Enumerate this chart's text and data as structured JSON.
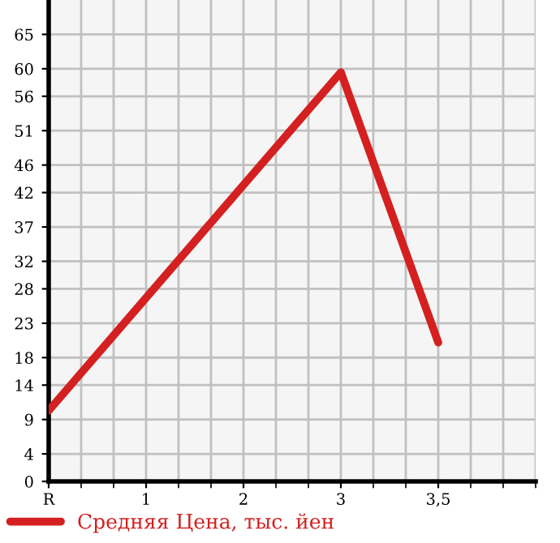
{
  "chart_data": {
    "type": "line",
    "categories": [
      "R",
      "1",
      "2",
      "3",
      "3,5"
    ],
    "series": [
      {
        "name": "Средняя Цена, тыс. йен",
        "color": "#d42020",
        "values": [
          10.3,
          null,
          null,
          59.5,
          20.2
        ]
      }
    ],
    "ylim": [
      0,
      70
    ],
    "yticks": [
      0,
      4,
      9,
      14,
      18,
      23,
      28,
      32,
      37,
      42,
      46,
      51,
      56,
      60,
      65
    ],
    "grid": true,
    "legend": "bottom",
    "marker": "none",
    "line_style": "solid"
  }
}
